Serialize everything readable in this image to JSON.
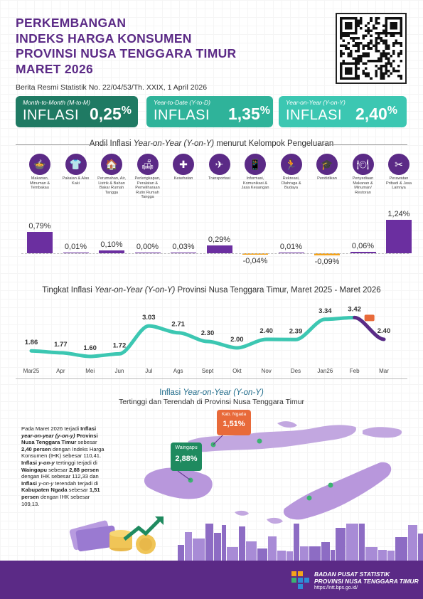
{
  "header": {
    "title_lines": [
      "PERKEMBANGAN",
      "INDEKS HARGA KONSUMEN",
      "PROVINSI NUSA TENGGARA TIMUR",
      "MARET 2026"
    ],
    "brs": "Berita Resmi Statistik No. 22/04/53/Th. XXIX, 1 April 2026"
  },
  "boxes": [
    {
      "sub": "Month-to-Month (M-to-M)",
      "label": "INFLASI",
      "value": "0,25",
      "unit": "%",
      "color": "#1f7a63"
    },
    {
      "sub": "Year-to-Date (Y-to-D)",
      "label": "INFLASI",
      "value": "1,35",
      "unit": "%",
      "color": "#2fb39a"
    },
    {
      "sub": "Year-on-Year (Y-on-Y)",
      "label": "INFLASI",
      "value": "2,40",
      "unit": "%",
      "color": "#3cc7b2"
    }
  ],
  "andil": {
    "title_a": "Andil Inflasi ",
    "title_b": "Year-on-Year (Y-on-Y)",
    "title_c": " menurut Kelompok Pengeluaran",
    "categories": [
      {
        "label": "Makanan, Minuman & Tembakau",
        "icon": "food-icon",
        "glyph": "🍲",
        "value": 0.79,
        "text": "0,79%"
      },
      {
        "label": "Pakaian & Alas Kaki",
        "icon": "clothing-icon",
        "glyph": "👕",
        "value": 0.01,
        "text": "0,01%"
      },
      {
        "label": "Perumahan, Air, Listrik & Bahan Bakar Rumah Tangga",
        "icon": "house-icon",
        "glyph": "🏠",
        "value": 0.1,
        "text": "0,10%"
      },
      {
        "label": "Perlengkapan, Peralatan & Pemeliharaan Rutin Rumah Tangga",
        "icon": "furniture-icon",
        "glyph": "🛋",
        "value": 0.0,
        "text": "0,00%"
      },
      {
        "label": "Kesehatan",
        "icon": "health-icon",
        "glyph": "✚",
        "value": 0.03,
        "text": "0,03%"
      },
      {
        "label": "Transportasi",
        "icon": "plane-icon",
        "glyph": "✈",
        "value": 0.29,
        "text": "0,29%"
      },
      {
        "label": "Informasi, Komunikasi & Jasa Keuangan",
        "icon": "phone-icon",
        "glyph": "📱",
        "value": -0.04,
        "text": "-0,04%"
      },
      {
        "label": "Rekreasi, Olahraga & Budaya",
        "icon": "runner-icon",
        "glyph": "🏃",
        "value": 0.01,
        "text": "0,01%"
      },
      {
        "label": "Pendidikan",
        "icon": "graduation-icon",
        "glyph": "🎓",
        "value": -0.09,
        "text": "-0,09%"
      },
      {
        "label": "Penyediaan Makanan & Minuman/ Restoran",
        "icon": "restaurant-icon",
        "glyph": "🍽",
        "value": 0.06,
        "text": "0,06%"
      },
      {
        "label": "Perawatan Pribadi & Jasa Lainnya",
        "icon": "tools-icon",
        "glyph": "✂",
        "value": 1.24,
        "text": "1,24%"
      }
    ]
  },
  "trend": {
    "title_a": "Tingkat Inflasi ",
    "title_b": "Year-on-Year (Y-on-Y)",
    "title_c": " Provinsi Nusa Tenggara Timur, Maret 2025 -  Maret 2026",
    "chart_data": {
      "type": "line",
      "categories": [
        "Mar25",
        "Apr",
        "Mei",
        "Jun",
        "Jul",
        "Ags",
        "Sept",
        "Okt",
        "Nov",
        "Des",
        "Jan26",
        "Feb",
        "Mar"
      ],
      "values": [
        1.86,
        1.77,
        1.6,
        1.72,
        3.03,
        2.71,
        2.3,
        2.0,
        2.4,
        2.39,
        3.34,
        3.42,
        2.4
      ],
      "labels": [
        "1.86",
        "1.77",
        "1.60",
        "1.72",
        "3.03",
        "2.71",
        "2.30",
        "2.00",
        "2.40",
        "2.39",
        "3.34",
        "3.42",
        "2.40"
      ]
    }
  },
  "map": {
    "title_a": "Inflasi ",
    "title_b": "Year-on-Year (Y-on-Y)",
    "subtitle": "Tertinggi dan Terendah di Provinsi Nusa Tenggara Timur",
    "high_city": "Waingapu",
    "high_value": "2,88%",
    "low_city": "Kab. Ngada",
    "low_value": "1,51%",
    "paragraph": [
      {
        "t": "Pada Maret 2026 terjadi ",
        "b": false
      },
      {
        "t": "Inflasi ",
        "b": true
      },
      {
        "t": "year-on-year (y-on-y) ",
        "b": true,
        "i": true
      },
      {
        "t": "Provinsi Nusa Tenggara Timur ",
        "b": true
      },
      {
        "t": "sebesar ",
        "b": false
      },
      {
        "t": "2,40 persen ",
        "b": true
      },
      {
        "t": "dengan Indeks Harga Konsumen (IHK) sebesar 110,41. ",
        "b": false
      },
      {
        "t": "Inflasi ",
        "b": true
      },
      {
        "t": "y-on-y ",
        "b": true,
        "i": true
      },
      {
        "t": "tertinggi terjadi di ",
        "b": false
      },
      {
        "t": "Waingapu ",
        "b": true
      },
      {
        "t": "sebesar ",
        "b": false
      },
      {
        "t": "2,88 persen ",
        "b": true
      },
      {
        "t": "dengan IHK sebesar 112,33 dan ",
        "b": false
      },
      {
        "t": "Inflasi ",
        "b": true
      },
      {
        "t": "y-on-y ",
        "b": false,
        "i": true
      },
      {
        "t": "terendah terjadi di ",
        "b": false
      },
      {
        "t": "Kabupaten Ngada ",
        "b": true
      },
      {
        "t": "sebesar ",
        "b": false
      },
      {
        "t": "1,51 persen ",
        "b": true
      },
      {
        "t": "dengan IHK sebesar 109,13.",
        "b": false
      }
    ]
  },
  "footer": {
    "org1": "BADAN PUSAT STATISTIK",
    "org2": "PROVINSI NUSA TENGGARA TIMUR",
    "url": "https://ntt.bps.go.id/"
  }
}
